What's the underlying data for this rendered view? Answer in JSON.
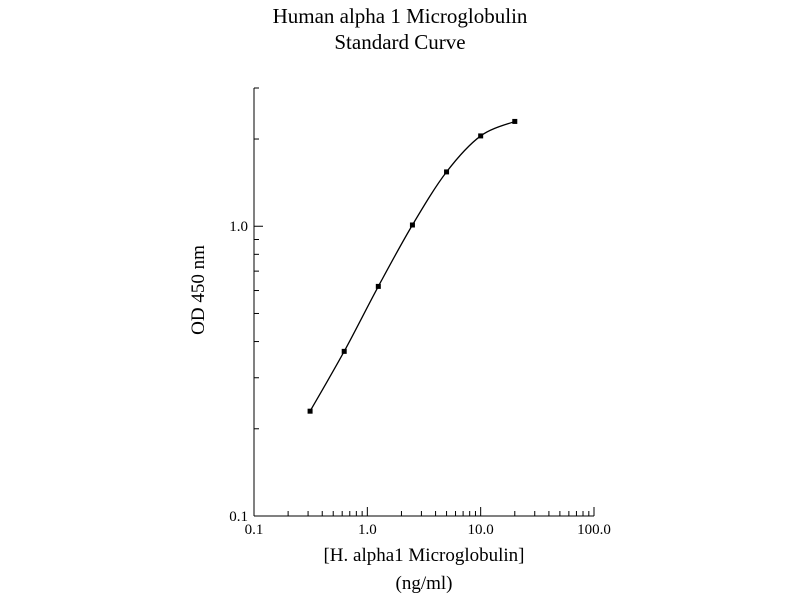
{
  "chart_data": {
    "type": "line",
    "title_lines": [
      "Human alpha 1 Microglobulin",
      "Standard Curve"
    ],
    "xlabel_lines": [
      "[H. alpha1 Microglobulin]",
      "(ng/ml)"
    ],
    "ylabel": "OD 450 nm",
    "x_scale": "log",
    "y_scale": "log",
    "xlim": [
      0.1,
      100.0
    ],
    "ylim": [
      0.1,
      3.0
    ],
    "x_ticks": [
      {
        "value": 0.1,
        "label": "0.1"
      },
      {
        "value": 1.0,
        "label": "1.0"
      },
      {
        "value": 10.0,
        "label": "10.0"
      },
      {
        "value": 100.0,
        "label": "100.0"
      }
    ],
    "y_ticks": [
      {
        "value": 0.1,
        "label": "0.1"
      },
      {
        "value": 1.0,
        "label": "1.0"
      }
    ],
    "grid": false,
    "series": [
      {
        "x": [
          0.3125,
          0.625,
          1.25,
          2.5,
          5.0,
          10.0,
          20.0
        ],
        "y": [
          0.23,
          0.37,
          0.62,
          1.01,
          1.54,
          2.05,
          2.3
        ]
      }
    ],
    "colors": {
      "line": "#000000",
      "marker": "#000000"
    }
  }
}
